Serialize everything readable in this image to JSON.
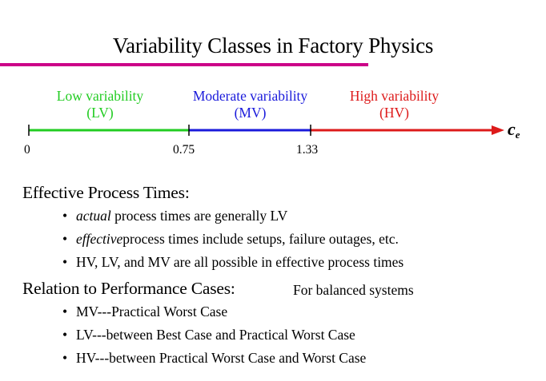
{
  "title": "Variability Classes in Factory Physics",
  "scale": {
    "zones": [
      {
        "name": "Low variability",
        "abbr": "(LV)",
        "color": "#22cc22"
      },
      {
        "name": "Moderate variability",
        "abbr": "(MV)",
        "color": "#1a1adb"
      },
      {
        "name": "High variability",
        "abbr": "(HV)",
        "color": "#dd1a1a"
      }
    ],
    "ticks": [
      "0",
      "0.75",
      "1.33"
    ],
    "axis_symbol": "c",
    "axis_subscript": "e"
  },
  "effective": {
    "heading": "Effective Process Times:",
    "items": [
      {
        "emph": "actual",
        "rest": " process times are generally LV"
      },
      {
        "emph": "effective",
        "rest": "process times include setups, failure outages, etc."
      },
      {
        "emph": "",
        "rest": "HV, LV, and MV are all possible in effective process times"
      }
    ]
  },
  "relation": {
    "heading": "Relation to Performance Cases:",
    "aside": "For balanced systems",
    "items": [
      "MV---Practical Worst Case",
      "LV---between Best Case and Practical Worst Case",
      "HV---between Practical Worst Case and Worst Case"
    ]
  },
  "colors": {
    "title_rule": "#cc0088",
    "lv": "#22cc22",
    "mv": "#1a1adb",
    "hv": "#dd1a1a"
  }
}
